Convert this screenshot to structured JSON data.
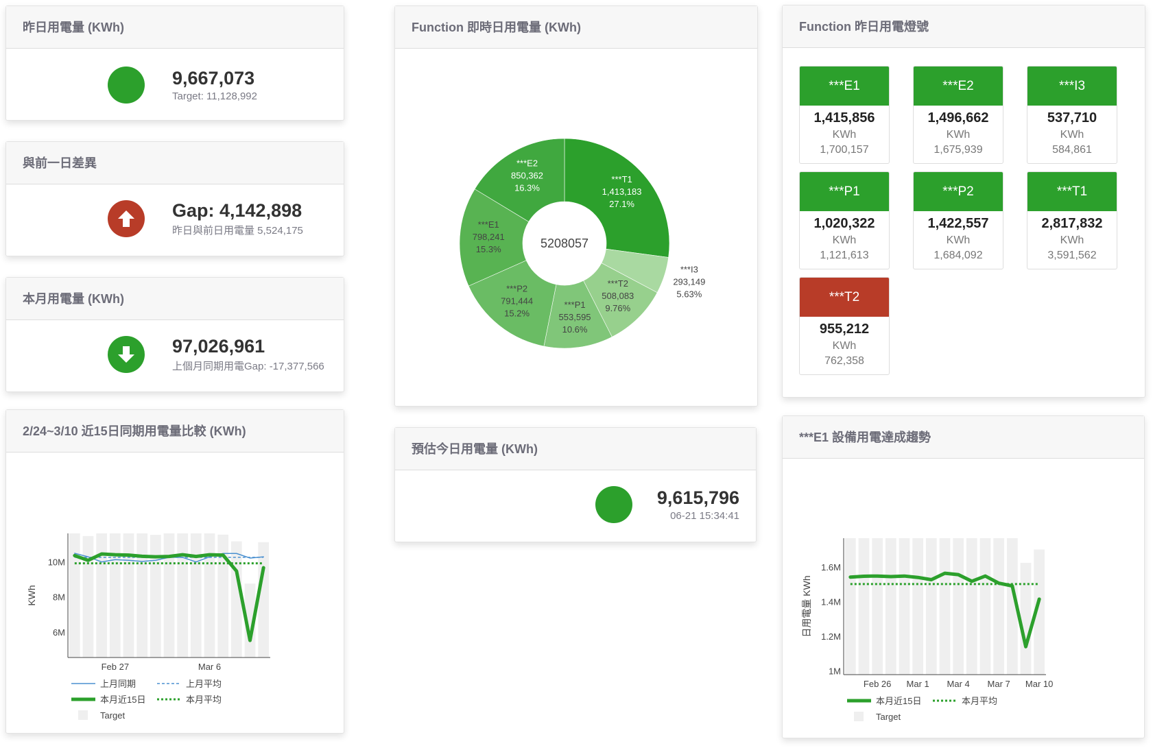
{
  "colors": {
    "green": "#2ca02c",
    "red": "#b83c28",
    "header_text": "#6c6c78"
  },
  "yesterday": {
    "title": "昨日用電量 (KWh)",
    "value": "9,667,073",
    "target": "Target: 11,128,992",
    "status_icon": "green-circle-icon"
  },
  "diff": {
    "title": "與前一日差異",
    "value": "Gap: 4,142,898",
    "sub": "昨日與前日用電量 5,524,175",
    "status_icon": "arrow-up-circle-icon"
  },
  "month": {
    "title": "本月用電量 (KWh)",
    "value": "97,026,961",
    "sub": "上個月同期用電Gap: -17,377,566",
    "status_icon": "arrow-down-circle-icon"
  },
  "realtime": {
    "title": "Function 即時日用電量 (KWh)",
    "center": "5208057"
  },
  "forecast": {
    "title": "預估今日用電量 (KWh)",
    "value": "9,615,796",
    "time": "06-21 15:34:41"
  },
  "lights": {
    "title": "Function 昨日用電燈號",
    "tiles": [
      {
        "name": "***E1",
        "value": "1,415,856",
        "unit": "KWh",
        "target": "1,700,157",
        "status": "green"
      },
      {
        "name": "***E2",
        "value": "1,496,662",
        "unit": "KWh",
        "target": "1,675,939",
        "status": "green"
      },
      {
        "name": "***I3",
        "value": "537,710",
        "unit": "KWh",
        "target": "584,861",
        "status": "green"
      },
      {
        "name": "***P1",
        "value": "1,020,322",
        "unit": "KWh",
        "target": "1,121,613",
        "status": "green"
      },
      {
        "name": "***P2",
        "value": "1,422,557",
        "unit": "KWh",
        "target": "1,684,092",
        "status": "green"
      },
      {
        "name": "***T1",
        "value": "2,817,832",
        "unit": "KWh",
        "target": "3,591,562",
        "status": "green"
      },
      {
        "name": "***T2",
        "value": "955,212",
        "unit": "KWh",
        "target": "762,358",
        "status": "red"
      }
    ]
  },
  "compare": {
    "title": "2/24~3/10 近15日同期用電量比較 (KWh)"
  },
  "trend": {
    "title": "***E1 設備用電達成趨勢"
  },
  "chart_data": [
    {
      "type": "pie",
      "hole": true,
      "center_label": "5208057",
      "slices": [
        {
          "label": "***T1",
          "value": 1413183,
          "value_text": "1,413,183",
          "pct": "27.1%",
          "color": "#2ca02c"
        },
        {
          "label": "***I3",
          "value": 293149,
          "value_text": "293,149",
          "pct": "5.63%",
          "color": "#a9d9a1"
        },
        {
          "label": "***T2",
          "value": 508083,
          "value_text": "508,083",
          "pct": "9.76%",
          "color": "#97d08d"
        },
        {
          "label": "***P1",
          "value": 553595,
          "value_text": "553,595",
          "pct": "10.6%",
          "color": "#80c679"
        },
        {
          "label": "***P2",
          "value": 791444,
          "value_text": "791,444",
          "pct": "15.2%",
          "color": "#6abc64"
        },
        {
          "label": "***E1",
          "value": 798241,
          "value_text": "798,241",
          "pct": "15.3%",
          "color": "#58b352"
        },
        {
          "label": "***E2",
          "value": 850362,
          "value_text": "850,362",
          "pct": "16.3%",
          "color": "#40a83f"
        }
      ]
    },
    {
      "type": "line",
      "ylabel": "KWh",
      "ylim": [
        4.6,
        11.65
      ],
      "yticks": [
        {
          "v": 6,
          "t": "6M"
        },
        {
          "v": 8,
          "t": "8M"
        },
        {
          "v": 10,
          "t": "10M"
        }
      ],
      "x": [
        "Feb 24",
        "Feb 25",
        "Feb 26",
        "Feb 27",
        "Feb 28",
        "Mar 1",
        "Mar 2",
        "Mar 3",
        "Mar 4",
        "Mar 5",
        "Mar 6",
        "Mar 7",
        "Mar 8",
        "Mar 9",
        "Mar 10"
      ],
      "xticks": [
        {
          "i": 3,
          "t": "Feb 27"
        },
        {
          "i": 10,
          "t": "Mar 6"
        }
      ],
      "series": [
        {
          "name": "Target",
          "kind": "bar",
          "color": "#efefef",
          "values": [
            11.65,
            11.5,
            11.65,
            11.65,
            11.65,
            11.65,
            11.57,
            11.65,
            11.65,
            11.65,
            11.65,
            11.58,
            11.2,
            8.8,
            11.15
          ]
        },
        {
          "name": "上月同期",
          "kind": "line",
          "color": "#4a90d0",
          "width": 1.5,
          "values": [
            10.52,
            10.32,
            10.03,
            10.16,
            10.12,
            10.06,
            10.12,
            10.29,
            10.29,
            10.03,
            10.32,
            10.51,
            10.51,
            10.25,
            10.32
          ]
        },
        {
          "name": "上月平均",
          "kind": "hline",
          "color": "#4a90d0",
          "dash": "4,3",
          "width": 1.5,
          "value": 10.29
        },
        {
          "name": "本月近15日",
          "kind": "line",
          "color": "#2ca02c",
          "width": 5,
          "values": [
            10.39,
            10.12,
            10.48,
            10.44,
            10.42,
            10.35,
            10.32,
            10.34,
            10.44,
            10.34,
            10.44,
            10.42,
            9.51,
            5.57,
            9.7
          ]
        },
        {
          "name": "本月平均",
          "kind": "hline",
          "color": "#2ca02c",
          "dash": "3,3",
          "width": 3,
          "value": 9.95
        }
      ]
    },
    {
      "type": "line",
      "ylabel": "日用電量 KWh",
      "ylim": [
        0.983,
        1.769
      ],
      "yticks": [
        {
          "v": 1,
          "t": "1M"
        },
        {
          "v": 1.2,
          "t": "1.2M"
        },
        {
          "v": 1.4,
          "t": "1.4M"
        },
        {
          "v": 1.6,
          "t": "1.6M"
        }
      ],
      "x": [
        "Feb 24",
        "Feb 25",
        "Feb 26",
        "Feb 27",
        "Feb 28",
        "Mar 1",
        "Mar 2",
        "Mar 3",
        "Mar 4",
        "Mar 5",
        "Mar 6",
        "Mar 7",
        "Mar 8",
        "Mar 9",
        "Mar 10"
      ],
      "xticks": [
        {
          "i": 2,
          "t": "Feb 26"
        },
        {
          "i": 5,
          "t": "Mar 1"
        },
        {
          "i": 8,
          "t": "Mar 4"
        },
        {
          "i": 11,
          "t": "Mar 7"
        },
        {
          "i": 14,
          "t": "Mar 10"
        }
      ],
      "series": [
        {
          "name": "Target",
          "kind": "bar",
          "color": "#efefef",
          "values": [
            1.769,
            1.769,
            1.769,
            1.769,
            1.769,
            1.769,
            1.769,
            1.769,
            1.769,
            1.769,
            1.769,
            1.769,
            1.769,
            1.627,
            1.704
          ]
        },
        {
          "name": "本月近15日",
          "kind": "line",
          "color": "#2ca02c",
          "width": 5,
          "values": [
            1.545,
            1.55,
            1.551,
            1.548,
            1.551,
            1.543,
            1.53,
            1.567,
            1.559,
            1.521,
            1.551,
            1.51,
            1.494,
            1.144,
            1.418
          ]
        },
        {
          "name": "本月平均",
          "kind": "hline",
          "color": "#2ca02c",
          "dash": "3,3",
          "width": 3,
          "value": 1.505
        }
      ]
    }
  ]
}
